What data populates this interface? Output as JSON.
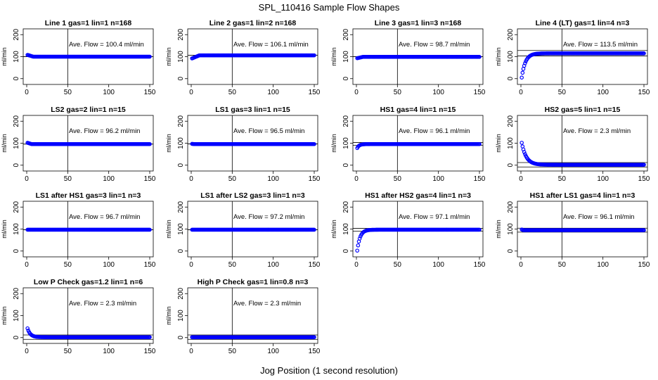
{
  "figure": {
    "title": "SPL_110416  Sample Flow Shapes",
    "xlabel": "Jog Position (1 second resolution)"
  },
  "chart_data": [
    {
      "type": "scatter",
      "title": "Line 1 gas=1 lin=1 n=168",
      "ylabel": "ml/min",
      "xlim": [
        0,
        150
      ],
      "ylim": [
        -20,
        220
      ],
      "xticks": [
        0,
        50,
        100,
        150
      ],
      "yticks": [
        0,
        100,
        200
      ],
      "ave_label": "Ave. Flow =  100.4  ml/min",
      "hlines": [
        100,
        100
      ],
      "vline": 50,
      "profile": {
        "kind": "flat",
        "start": 108,
        "end": 100,
        "settle": 8
      },
      "series": [
        {
          "marker": "open-circle",
          "color": "#0000ff"
        }
      ]
    },
    {
      "type": "scatter",
      "title": "Line 2 gas=1 lin=2 n=168",
      "ylabel": "ml/min",
      "xlim": [
        0,
        150
      ],
      "ylim": [
        -20,
        220
      ],
      "xticks": [
        0,
        50,
        100,
        150
      ],
      "yticks": [
        0,
        100,
        200
      ],
      "ave_label": "Ave. Flow =  106.1  ml/min",
      "hlines": [
        106,
        106
      ],
      "vline": 50,
      "profile": {
        "kind": "flat",
        "start": 92,
        "end": 106,
        "settle": 10
      },
      "series": [
        {
          "marker": "open-circle",
          "color": "#0000ff"
        }
      ]
    },
    {
      "type": "scatter",
      "title": "Line 3 gas=1 lin=3 n=168",
      "ylabel": "ml/min",
      "xlim": [
        0,
        150
      ],
      "ylim": [
        -20,
        220
      ],
      "xticks": [
        0,
        50,
        100,
        150
      ],
      "yticks": [
        0,
        100,
        200
      ],
      "ave_label": "Ave. Flow =  98.7  ml/min",
      "hlines": [
        100,
        100
      ],
      "vline": 50,
      "profile": {
        "kind": "flat",
        "start": 93,
        "end": 99,
        "settle": 8
      },
      "series": [
        {
          "marker": "open-circle",
          "color": "#0000ff"
        }
      ]
    },
    {
      "type": "scatter",
      "title": "Line 4 (LT) gas=1 lin=4 n=3",
      "ylabel": "ml/min",
      "xlim": [
        0,
        150
      ],
      "ylim": [
        -20,
        220
      ],
      "xticks": [
        0,
        50,
        100,
        150
      ],
      "yticks": [
        0,
        100,
        200
      ],
      "ave_label": "Ave. Flow =  113.5  ml/min",
      "hlines": [
        103,
        128
      ],
      "vline": 50,
      "profile": {
        "kind": "rise",
        "start": 5,
        "end": 115,
        "tau": 4.5
      },
      "series": [
        {
          "marker": "open-circle",
          "color": "#0000ff"
        }
      ]
    },
    {
      "type": "scatter",
      "title": "LS2 gas=2 lin=1 n=15",
      "ylabel": "ml/min",
      "xlim": [
        0,
        150
      ],
      "ylim": [
        -20,
        220
      ],
      "xticks": [
        0,
        50,
        100,
        150
      ],
      "yticks": [
        0,
        100,
        200
      ],
      "ave_label": "Ave. Flow =  96.2  ml/min",
      "hlines": [
        96,
        96
      ],
      "vline": 50,
      "profile": {
        "kind": "flat",
        "start": 102,
        "end": 96,
        "settle": 6
      },
      "series": [
        {
          "marker": "open-circle",
          "color": "#0000ff"
        }
      ]
    },
    {
      "type": "scatter",
      "title": "LS1 gas=3 lin=1 n=15",
      "ylabel": "ml/min",
      "xlim": [
        0,
        150
      ],
      "ylim": [
        -20,
        220
      ],
      "xticks": [
        0,
        50,
        100,
        150
      ],
      "yticks": [
        0,
        100,
        200
      ],
      "ave_label": "Ave. Flow =  96.5  ml/min",
      "hlines": [
        97,
        97
      ],
      "vline": 50,
      "profile": {
        "kind": "flat",
        "start": 97,
        "end": 96,
        "settle": 4
      },
      "series": [
        {
          "marker": "open-circle",
          "color": "#0000ff"
        }
      ]
    },
    {
      "type": "scatter",
      "title": "HS1 gas=4 lin=1 n=15",
      "ylabel": "ml/min",
      "xlim": [
        0,
        150
      ],
      "ylim": [
        -20,
        220
      ],
      "xticks": [
        0,
        50,
        100,
        150
      ],
      "yticks": [
        0,
        100,
        200
      ],
      "ave_label": "Ave. Flow =  96.1  ml/min",
      "hlines": [
        90,
        103
      ],
      "vline": 50,
      "profile": {
        "kind": "rise",
        "start": 78,
        "end": 96,
        "tau": 2.5
      },
      "series": [
        {
          "marker": "open-circle",
          "color": "#0000ff"
        }
      ]
    },
    {
      "type": "scatter",
      "title": "HS2 gas=5 lin=1 n=15",
      "ylabel": "ml/min",
      "xlim": [
        0,
        150
      ],
      "ylim": [
        -20,
        220
      ],
      "xticks": [
        0,
        50,
        100,
        150
      ],
      "yticks": [
        0,
        100,
        200
      ],
      "ave_label": "Ave. Flow =  2.3  ml/min",
      "hlines": [
        -8,
        12
      ],
      "vline": 50,
      "profile": {
        "kind": "decay",
        "start": 102,
        "end": 2,
        "tau": 5.5
      },
      "series": [
        {
          "marker": "open-circle",
          "color": "#0000ff"
        }
      ]
    },
    {
      "type": "scatter",
      "title": "LS1 after HS1 gas=3 lin=1 n=3",
      "ylabel": "ml/min",
      "xlim": [
        0,
        150
      ],
      "ylim": [
        -20,
        220
      ],
      "xticks": [
        0,
        50,
        100,
        150
      ],
      "yticks": [
        0,
        100,
        200
      ],
      "ave_label": "Ave. Flow =  96.7  ml/min",
      "hlines": [
        97,
        97
      ],
      "vline": 50,
      "profile": {
        "kind": "flat",
        "start": 97,
        "end": 97,
        "settle": 2
      },
      "series": [
        {
          "marker": "open-circle",
          "color": "#0000ff"
        }
      ]
    },
    {
      "type": "scatter",
      "title": "LS1 after LS2 gas=3 lin=1 n=3",
      "ylabel": "ml/min",
      "xlim": [
        0,
        150
      ],
      "ylim": [
        -20,
        220
      ],
      "xticks": [
        0,
        50,
        100,
        150
      ],
      "yticks": [
        0,
        100,
        200
      ],
      "ave_label": "Ave. Flow =  97.2  ml/min",
      "hlines": [
        97,
        97
      ],
      "vline": 50,
      "profile": {
        "kind": "flat",
        "start": 97,
        "end": 97,
        "settle": 2
      },
      "series": [
        {
          "marker": "open-circle",
          "color": "#0000ff"
        }
      ]
    },
    {
      "type": "scatter",
      "title": "HS1 after HS2 gas=4 lin=1 n=3",
      "ylabel": "ml/min",
      "xlim": [
        0,
        150
      ],
      "ylim": [
        -20,
        220
      ],
      "xticks": [
        0,
        50,
        100,
        150
      ],
      "yticks": [
        0,
        100,
        200
      ],
      "ave_label": "Ave. Flow =  97.1  ml/min",
      "hlines": [
        90,
        103
      ],
      "vline": 50,
      "profile": {
        "kind": "rise",
        "start": 2,
        "end": 97,
        "tau": 3.5
      },
      "series": [
        {
          "marker": "open-circle",
          "color": "#0000ff"
        }
      ]
    },
    {
      "type": "scatter",
      "title": "HS1 after LS1 gas=4 lin=1 n=3",
      "ylabel": "ml/min",
      "xlim": [
        0,
        150
      ],
      "ylim": [
        -20,
        220
      ],
      "xticks": [
        0,
        50,
        100,
        150
      ],
      "yticks": [
        0,
        100,
        200
      ],
      "ave_label": "Ave. Flow =  96.1  ml/min",
      "hlines": [
        86,
        104
      ],
      "vline": 50,
      "profile": {
        "kind": "flat",
        "start": 98,
        "end": 95,
        "settle": 3
      },
      "series": [
        {
          "marker": "open-circle",
          "color": "#0000ff"
        }
      ]
    },
    {
      "type": "scatter",
      "title": "Low P Check gas=1.2 lin=1 n=6",
      "ylabel": "ml/min",
      "xlim": [
        0,
        150
      ],
      "ylim": [
        -20,
        220
      ],
      "xticks": [
        0,
        50,
        100,
        150
      ],
      "yticks": [
        0,
        100,
        200
      ],
      "ave_label": "Ave. Flow =  2.3  ml/min",
      "hlines": [
        -8,
        12
      ],
      "vline": 50,
      "profile": {
        "kind": "decay",
        "start": 42,
        "end": 2,
        "tau": 3.5
      },
      "series": [
        {
          "marker": "open-circle",
          "color": "#0000ff"
        }
      ]
    },
    {
      "type": "scatter",
      "title": "High P Check gas=1 lin=0.8 n=3",
      "ylabel": "ml/min",
      "xlim": [
        0,
        150
      ],
      "ylim": [
        -20,
        220
      ],
      "xticks": [
        0,
        50,
        100,
        150
      ],
      "yticks": [
        0,
        100,
        200
      ],
      "ave_label": "Ave. Flow =  2.3  ml/min",
      "hlines": [
        -8,
        12
      ],
      "vline": 50,
      "profile": {
        "kind": "flat",
        "start": 2,
        "end": 2,
        "settle": 2
      },
      "series": [
        {
          "marker": "open-circle",
          "color": "#0000ff"
        }
      ]
    }
  ]
}
